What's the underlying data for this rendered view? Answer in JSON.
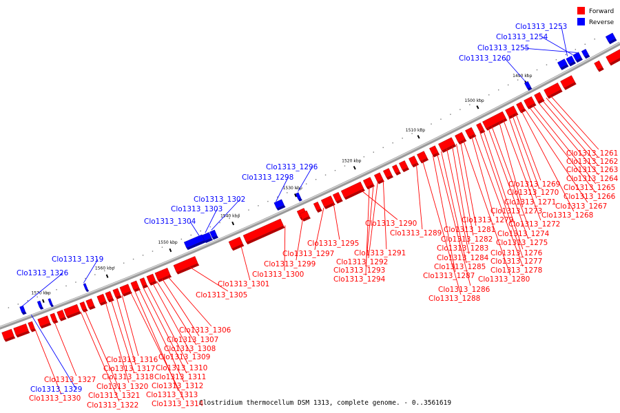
{
  "caption": "Clostridium thermocellum DSM 1313, complete genome. - 0..3561619",
  "legend": [
    {
      "label": "Forward",
      "color": "#ff0000"
    },
    {
      "label": "Reverse",
      "color": "#0000ff"
    }
  ],
  "colors": {
    "forward": "#ff0000",
    "reverse": "#0000ff",
    "backbone": "#808080"
  },
  "ticks": [
    "1490 kbp",
    "1500 kbp",
    "1510 kbp",
    "1520 kbp",
    "1530 kbp",
    "1540 kbp",
    "1550 kbp",
    "1560 kbp",
    "1570 kbp"
  ],
  "genes": [
    {
      "id": "Clo1313_1253",
      "strand": "reverse"
    },
    {
      "id": "Clo1313_1254",
      "strand": "reverse"
    },
    {
      "id": "Clo1313_1255",
      "strand": "reverse"
    },
    {
      "id": "Clo1313_1260",
      "strand": "reverse"
    },
    {
      "id": "Clo1313_1261",
      "strand": "forward"
    },
    {
      "id": "Clo1313_1262",
      "strand": "forward"
    },
    {
      "id": "Clo1313_1263",
      "strand": "forward"
    },
    {
      "id": "Clo1313_1264",
      "strand": "forward"
    },
    {
      "id": "Clo1313_1265",
      "strand": "forward"
    },
    {
      "id": "Clo1313_1266",
      "strand": "forward"
    },
    {
      "id": "Clo1313_1267",
      "strand": "forward"
    },
    {
      "id": "Clo1313_1268",
      "strand": "forward"
    },
    {
      "id": "Clo1313_1269",
      "strand": "forward"
    },
    {
      "id": "Clo1313_1270",
      "strand": "forward"
    },
    {
      "id": "Clo1313_1271",
      "strand": "forward"
    },
    {
      "id": "Clo1313_1272",
      "strand": "forward"
    },
    {
      "id": "Clo1313_1273",
      "strand": "forward"
    },
    {
      "id": "Clo1313_1274",
      "strand": "forward"
    },
    {
      "id": "Clo1313_1275",
      "strand": "forward"
    },
    {
      "id": "Clo1313_1276",
      "strand": "forward"
    },
    {
      "id": "Clo1313_1277",
      "strand": "forward"
    },
    {
      "id": "Clo1313_1278",
      "strand": "forward"
    },
    {
      "id": "Clo1313_1279",
      "strand": "forward"
    },
    {
      "id": "Clo1313_1280",
      "strand": "forward"
    },
    {
      "id": "Clo1313_1281",
      "strand": "forward"
    },
    {
      "id": "Clo1313_1282",
      "strand": "forward"
    },
    {
      "id": "Clo1313_1283",
      "strand": "forward"
    },
    {
      "id": "Clo1313_1284",
      "strand": "forward"
    },
    {
      "id": "Clo1313_1285",
      "strand": "forward"
    },
    {
      "id": "Clo1313_1286",
      "strand": "forward"
    },
    {
      "id": "Clo1313_1287",
      "strand": "forward"
    },
    {
      "id": "Clo1313_1288",
      "strand": "forward"
    },
    {
      "id": "Clo1313_1289",
      "strand": "forward"
    },
    {
      "id": "Clo1313_1290",
      "strand": "forward"
    },
    {
      "id": "Clo1313_1291",
      "strand": "forward"
    },
    {
      "id": "Clo1313_1292",
      "strand": "forward"
    },
    {
      "id": "Clo1313_1293",
      "strand": "forward"
    },
    {
      "id": "Clo1313_1294",
      "strand": "forward"
    },
    {
      "id": "Clo1313_1295",
      "strand": "forward"
    },
    {
      "id": "Clo1313_1296",
      "strand": "reverse"
    },
    {
      "id": "Clo1313_1297",
      "strand": "forward"
    },
    {
      "id": "Clo1313_1298",
      "strand": "reverse"
    },
    {
      "id": "Clo1313_1299",
      "strand": "forward"
    },
    {
      "id": "Clo1313_1300",
      "strand": "forward"
    },
    {
      "id": "Clo1313_1301",
      "strand": "forward"
    },
    {
      "id": "Clo1313_1302",
      "strand": "reverse"
    },
    {
      "id": "Clo1313_1303",
      "strand": "reverse"
    },
    {
      "id": "Clo1313_1304",
      "strand": "reverse"
    },
    {
      "id": "Clo1313_1305",
      "strand": "forward"
    },
    {
      "id": "Clo1313_1306",
      "strand": "forward"
    },
    {
      "id": "Clo1313_1307",
      "strand": "forward"
    },
    {
      "id": "Clo1313_1308",
      "strand": "forward"
    },
    {
      "id": "Clo1313_1309",
      "strand": "forward"
    },
    {
      "id": "Clo1313_1310",
      "strand": "forward"
    },
    {
      "id": "Clo1313_1311",
      "strand": "forward"
    },
    {
      "id": "Clo1313_1312",
      "strand": "forward"
    },
    {
      "id": "Clo1313_1313",
      "strand": "forward"
    },
    {
      "id": "Clo1313_1314",
      "strand": "forward"
    },
    {
      "id": "Clo1313_1316",
      "strand": "forward"
    },
    {
      "id": "Clo1313_1317",
      "strand": "forward"
    },
    {
      "id": "Clo1313_1318",
      "strand": "forward"
    },
    {
      "id": "Clo1313_1319",
      "strand": "reverse"
    },
    {
      "id": "Clo1313_1320",
      "strand": "forward"
    },
    {
      "id": "Clo1313_1321",
      "strand": "forward"
    },
    {
      "id": "Clo1313_1322",
      "strand": "forward"
    },
    {
      "id": "Clo1313_1326",
      "strand": "reverse"
    },
    {
      "id": "Clo1313_1327",
      "strand": "forward"
    },
    {
      "id": "Clo1313_1329",
      "strand": "reverse"
    },
    {
      "id": "Clo1313_1330",
      "strand": "forward"
    }
  ]
}
